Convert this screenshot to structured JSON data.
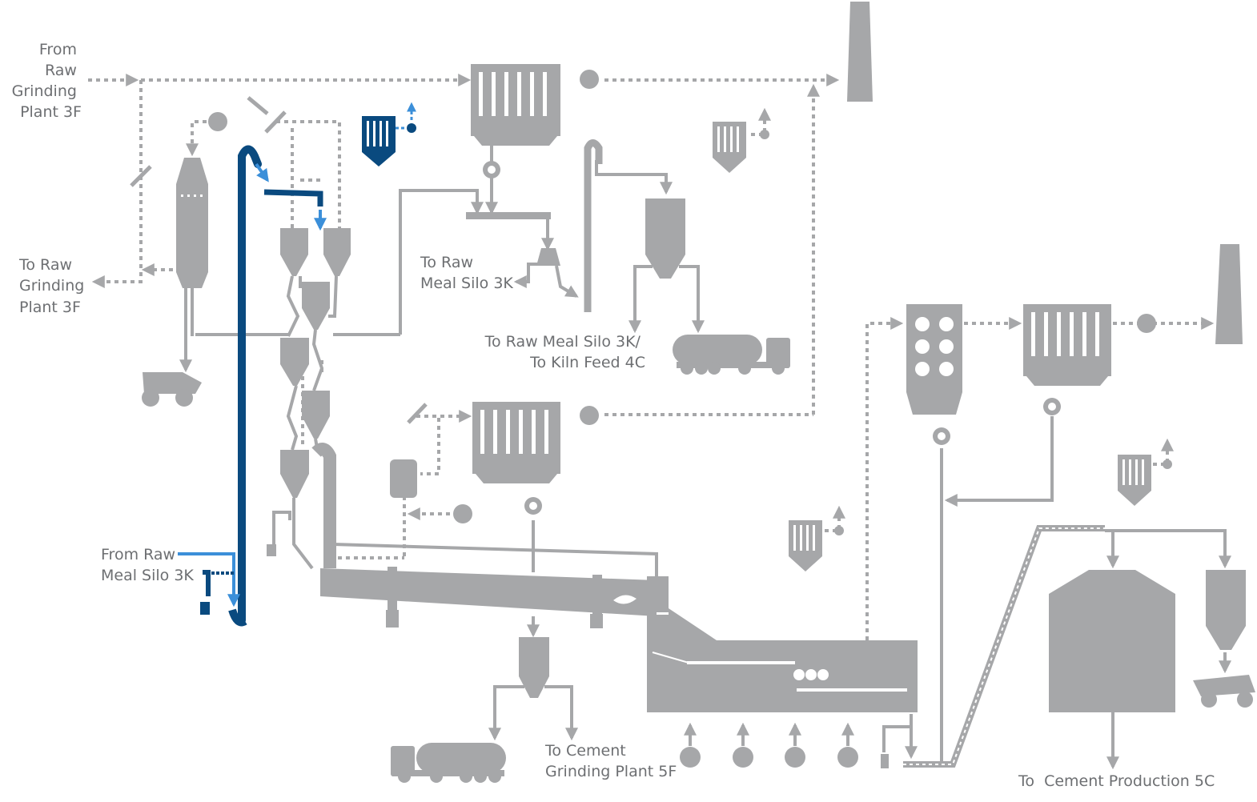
{
  "labels": {
    "from_raw_grinding": [
      "From",
      "Raw",
      "Grinding",
      "Plant 3F"
    ],
    "to_raw_grinding": [
      "To Raw",
      "Grinding",
      "Plant 3F"
    ],
    "to_raw_meal_silo": [
      "To Raw",
      "Meal Silo 3K"
    ],
    "to_raw_meal_silo_kiln_feed": [
      "To Raw Meal Silo 3K/",
      "To Kiln Feed 4C"
    ],
    "from_raw_meal_silo": [
      "From Raw",
      "Meal Silo 3K"
    ],
    "to_cement_grinding": [
      "To Cement",
      "Grinding Plant 5F"
    ],
    "to_cement_production": "To  Cement Production 5C"
  },
  "colors": {
    "equipment": "#a6a7a9",
    "highlight_dark": "#0a4a7f",
    "highlight_light": "#3b8fd9",
    "text": "#6d6f72"
  }
}
